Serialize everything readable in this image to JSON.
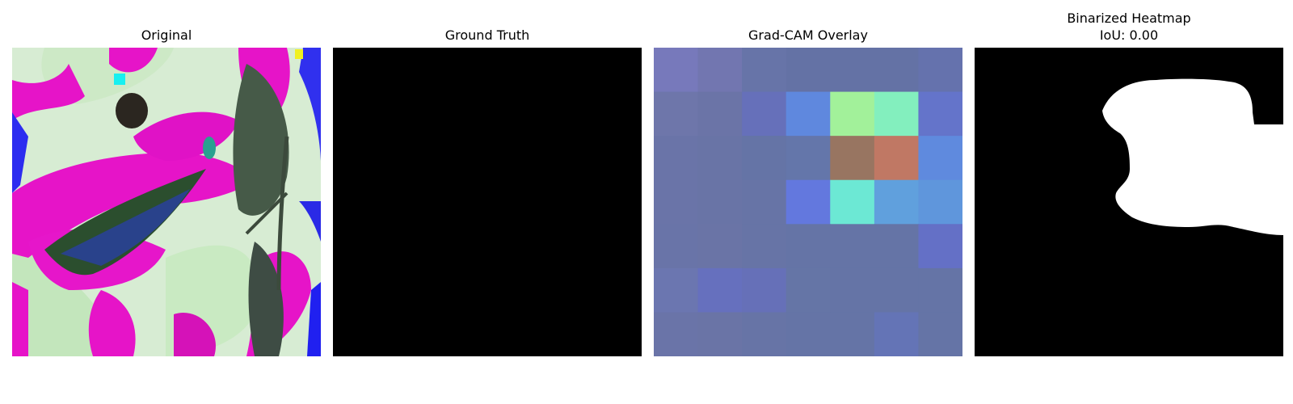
{
  "panels": {
    "original": {
      "title": "Original"
    },
    "ground_truth": {
      "title": "Ground Truth"
    },
    "gradcam": {
      "title": "Grad-CAM Overlay",
      "grid_colors": [
        [
          "#7779bb",
          "#7276b0",
          "#6774a8",
          "#6472a5",
          "#6472a5",
          "#6472a5",
          "#6572ad"
        ],
        [
          "#6e76aa",
          "#6b74a7",
          "#6670ba",
          "#5f88de",
          "#a2f19a",
          "#83efbe",
          "#6474ca"
        ],
        [
          "#6a74a8",
          "#6974a6",
          "#6574a6",
          "#6476aa",
          "#987561",
          "#c07864",
          "#5f8ade"
        ],
        [
          "#6a74a8",
          "#6974a6",
          "#6774a6",
          "#6378de",
          "#6ce8d4",
          "#60a0dd",
          "#5f96dc"
        ],
        [
          "#6974a8",
          "#6a74a6",
          "#6774a6",
          "#6574a6",
          "#6574a6",
          "#6574a6",
          "#6470c6"
        ],
        [
          "#6b76b0",
          "#6670be",
          "#6670b8",
          "#6575a6",
          "#6574a6",
          "#6574a6",
          "#6574a6"
        ],
        [
          "#6a74a8",
          "#6a74a6",
          "#6774a6",
          "#6574a6",
          "#6574a6",
          "#6474b6",
          "#6574a6"
        ]
      ]
    },
    "binarized": {
      "title_line1": "Binarized Heatmap",
      "title_line2": "IoU: 0.00"
    }
  }
}
